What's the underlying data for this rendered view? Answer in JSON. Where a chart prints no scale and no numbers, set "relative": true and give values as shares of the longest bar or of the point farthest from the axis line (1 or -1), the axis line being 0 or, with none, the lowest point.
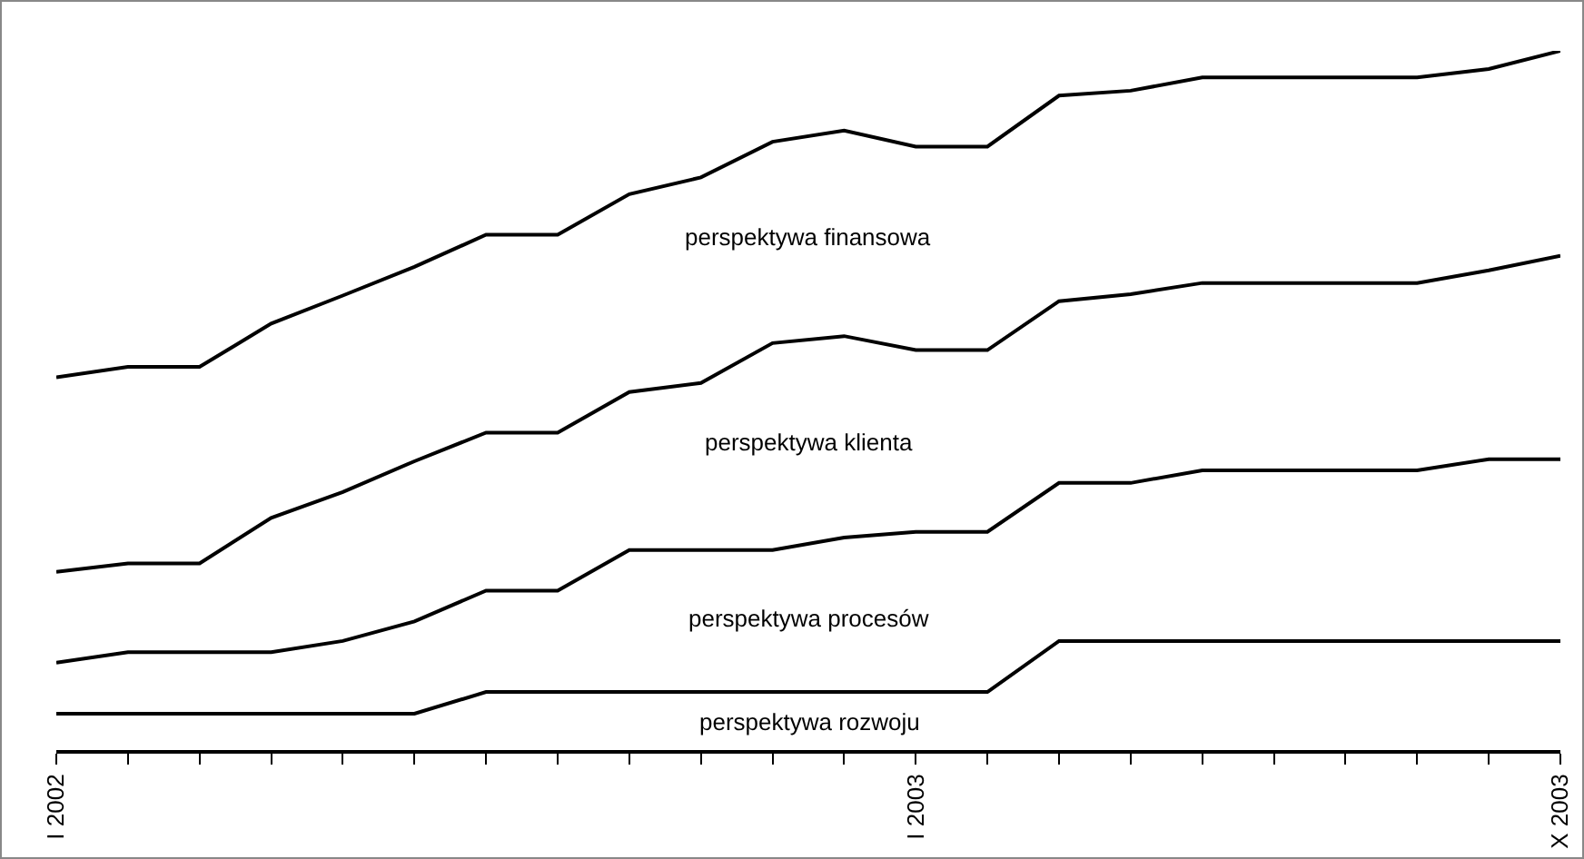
{
  "chart_data": {
    "type": "area",
    "stacked": true,
    "relative": true,
    "legend": false,
    "grid": false,
    "categories": [
      "I 2002",
      null,
      null,
      null,
      null,
      null,
      null,
      null,
      null,
      null,
      null,
      null,
      "I 2003",
      null,
      null,
      null,
      null,
      null,
      null,
      null,
      null,
      "X 2003"
    ],
    "series": [
      {
        "name": "perspektywa rozwoju",
        "color": "#000000",
        "values": [
          0.052,
          0.052,
          0.052,
          0.052,
          0.052,
          0.052,
          0.083,
          0.083,
          0.083,
          0.083,
          0.083,
          0.083,
          0.083,
          0.083,
          0.156,
          0.156,
          0.156,
          0.156,
          0.156,
          0.156,
          0.156,
          0.156
        ]
      },
      {
        "name": "perspektywa procesów",
        "color": "#000000",
        "values": [
          0.073,
          0.088,
          0.088,
          0.088,
          0.104,
          0.132,
          0.145,
          0.145,
          0.203,
          0.203,
          0.203,
          0.221,
          0.229,
          0.229,
          0.226,
          0.226,
          0.244,
          0.244,
          0.244,
          0.244,
          0.26,
          0.26
        ]
      },
      {
        "name": "perspektywa klienta",
        "color": "#000000",
        "values": [
          0.13,
          0.127,
          0.127,
          0.192,
          0.213,
          0.229,
          0.226,
          0.226,
          0.226,
          0.239,
          0.296,
          0.288,
          0.26,
          0.26,
          0.26,
          0.27,
          0.268,
          0.268,
          0.268,
          0.268,
          0.27,
          0.291
        ]
      },
      {
        "name": "perspektywa finansowa",
        "color": "#000000",
        "values": [
          0.278,
          0.281,
          0.281,
          0.278,
          0.281,
          0.278,
          0.283,
          0.283,
          0.283,
          0.294,
          0.288,
          0.294,
          0.291,
          0.291,
          0.294,
          0.291,
          0.294,
          0.294,
          0.294,
          0.294,
          0.288,
          0.293
        ]
      }
    ]
  }
}
